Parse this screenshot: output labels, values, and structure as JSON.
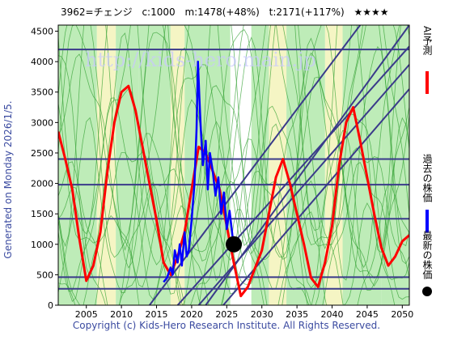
{
  "header": {
    "code_name": "3962=チェンジ",
    "c_value": "c:1000",
    "m_value": "m:1478(+48%)",
    "t_value": "t:2171(+117%)",
    "stars": "★★★★"
  },
  "generated_label": "Generated on Monday 2026/1/5.",
  "footer": "Copyright (c) Kids-Hero Research Institute. All Rights Reserved.",
  "watermark": "http://kids-hero.main.jp",
  "legend": [
    {
      "label": "AI予測",
      "color": "#ff0000",
      "marker": "line"
    },
    {
      "label": "過去の株価",
      "color": "#0000ff",
      "marker": "line"
    },
    {
      "label": "最新の株価",
      "color": "#000000",
      "marker": "dot"
    }
  ],
  "colors": {
    "plot_bg": "#ffffff",
    "green_band": "#a8e6a0",
    "yellow_band": "#f2f2b0",
    "green_line": "#30a030",
    "navy_line": "#3a3a8a",
    "prediction": "#ff0000",
    "history": "#0000ff",
    "latest": "#000000",
    "text_blue": "#3a4aa0"
  },
  "chart_data": {
    "type": "line",
    "title": "3962=チェンジ",
    "xlabel": "",
    "ylabel": "",
    "xlim": [
      2001,
      2051
    ],
    "ylim": [
      0,
      4600
    ],
    "xticks": [
      2005,
      2010,
      2015,
      2020,
      2025,
      2030,
      2035,
      2040,
      2045,
      2050
    ],
    "yticks": [
      0,
      500,
      1000,
      1500,
      2000,
      2500,
      3000,
      3500,
      4000,
      4500
    ],
    "grid": false,
    "legend_position": "right",
    "horizontal_levels": [
      4200,
      2400,
      1980,
      1420,
      460,
      270
    ],
    "trend_lines": [
      {
        "x": [
          2014.0,
          2044.0
        ],
        "y": [
          0,
          4600
        ]
      },
      {
        "x": [
          2018.0,
          2051.0
        ],
        "y": [
          0,
          4250
        ]
      },
      {
        "x": [
          2021.0,
          2051.0
        ],
        "y": [
          0,
          3950
        ]
      },
      {
        "x": [
          2024.5,
          2051.0
        ],
        "y": [
          0,
          3550
        ]
      },
      {
        "x": [
          2022.0,
          2051.0
        ],
        "y": [
          0,
          4600
        ]
      }
    ],
    "series": [
      {
        "name": "AI予測",
        "x": [
          2001,
          2002,
          2003,
          2004,
          2005,
          2006,
          2007,
          2008,
          2009,
          2010,
          2011,
          2012,
          2013,
          2014,
          2015,
          2016,
          2017,
          2018,
          2019,
          2020,
          2021,
          2022,
          2023,
          2024,
          2025,
          2026,
          2027,
          2028,
          2029,
          2030,
          2031,
          2032,
          2033,
          2034,
          2035,
          2036,
          2037,
          2038,
          2039,
          2040,
          2041,
          2042,
          2043,
          2044,
          2045,
          2046,
          2047,
          2048,
          2049,
          2050,
          2051
        ],
        "values": [
          2850,
          2400,
          1900,
          1100,
          400,
          650,
          1200,
          2200,
          3000,
          3500,
          3600,
          3200,
          2600,
          2000,
          1400,
          700,
          500,
          800,
          1200,
          1900,
          2600,
          2500,
          2200,
          1900,
          1300,
          700,
          150,
          300,
          600,
          900,
          1500,
          2100,
          2400,
          2000,
          1500,
          1000,
          450,
          300,
          700,
          1300,
          2300,
          3000,
          3250,
          2700,
          2100,
          1500,
          950,
          650,
          800,
          1050,
          1150
        ]
      },
      {
        "name": "過去の株価",
        "x": [
          2016.0,
          2016.5,
          2017.0,
          2017.3,
          2017.6,
          2018.0,
          2018.3,
          2018.6,
          2019.0,
          2019.3,
          2019.6,
          2020.0,
          2020.4,
          2020.7,
          2020.9,
          2021.1,
          2021.3,
          2021.6,
          2022.0,
          2022.3,
          2022.6,
          2023.0,
          2023.4,
          2023.8,
          2024.2,
          2024.6,
          2025.0,
          2025.4,
          2025.8,
          2026.0
        ],
        "values": [
          380,
          450,
          620,
          500,
          900,
          700,
          1000,
          650,
          1200,
          800,
          900,
          1400,
          2000,
          2900,
          4000,
          3400,
          2900,
          2300,
          2700,
          1900,
          2500,
          2200,
          1800,
          2100,
          1500,
          1850,
          1250,
          1550,
          1150,
          1000
        ]
      },
      {
        "name": "最新の株価",
        "x": [
          2026.0
        ],
        "values": [
          1000
        ]
      }
    ]
  }
}
